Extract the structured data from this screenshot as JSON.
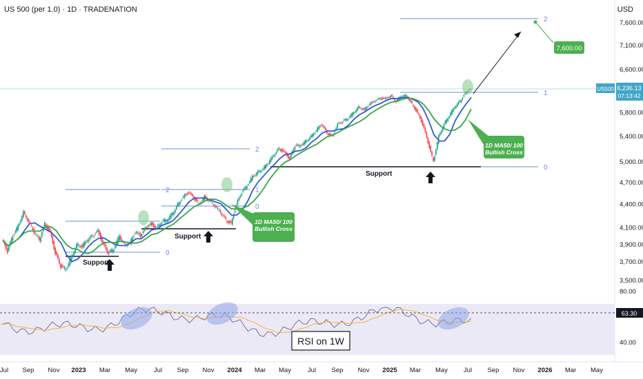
{
  "header": {
    "title": "US 500 (per 1.0) · 1D · TRADENATION",
    "currency": "USD"
  },
  "price_axis": [
    "7,600.00",
    "7,100.00",
    "6,600.00",
    "5,800.00",
    "5,400.00",
    "5,000.00",
    "4,700.00",
    "4,400.00",
    "4,100.00",
    "3,900.00",
    "3,700.00",
    "3,500.00"
  ],
  "rsi_axis": [
    "80.00",
    "40.00"
  ],
  "time_axis": [
    "Jul",
    "Sep",
    "Nov",
    "2023",
    "Mar",
    "May",
    "Jul",
    "Sep",
    "Nov",
    "2024",
    "Mar",
    "May",
    "Jul",
    "Sep",
    "Nov",
    "2025",
    "Mar",
    "May",
    "Jul",
    "Sep",
    "Nov",
    "2026",
    "Mar",
    "May"
  ],
  "badges": {
    "symbol": "US500",
    "price": "6,236.13",
    "countdown": "07:13:42",
    "rsi_value": "63.30",
    "target": "7,600.00"
  },
  "labels": {
    "support": "Support",
    "cross_line1": "1D MA50/ 100",
    "cross_line2": "Bullish Cross",
    "rsi_box": "RSI on 1W",
    "fib_0": "0",
    "fib_1": "1",
    "fib_2": "2"
  },
  "colors": {
    "price": "#131722",
    "candle_up": "#089981",
    "candle_down": "#f23645",
    "ma50": "#3358d4",
    "ma100": "#33a64a",
    "fib": "#6a8fd8",
    "rsi_line": "#7a6fa6",
    "rsi_ma": "#f5b630",
    "rsi_band": "#ece9f7",
    "callout": "#4caf50",
    "highlight_blue": "#8fa6e8",
    "highlight_green": "#7fc98a"
  },
  "chart_data": {
    "type": "line",
    "series": [
      {
        "values": [
          3950,
          3820,
          4000,
          4120,
          4300,
          4180,
          4050,
          3950,
          4150,
          4050,
          3800,
          3650,
          3620,
          3750,
          3900,
          3880,
          3950,
          4000,
          4060,
          3900,
          3800,
          3850,
          4000,
          3900,
          3920,
          4050,
          4000,
          4100,
          4150,
          4100,
          4180,
          4200,
          4280,
          4400,
          4500,
          4560,
          4480,
          4400,
          4500,
          4450,
          4380,
          4300,
          4200,
          4150,
          4400,
          4560,
          4650,
          4780,
          4850,
          4900,
          4990,
          5100,
          5200,
          5150,
          5050,
          5250,
          5250,
          5320,
          5400,
          5500,
          5600,
          5450,
          5400,
          5600,
          5650,
          5700,
          5800,
          5900,
          5850,
          5950,
          6000,
          6050,
          6050,
          6100,
          6000,
          6100,
          6100,
          5950,
          5800,
          5600,
          5300,
          5000,
          5400,
          5600,
          5750,
          5900,
          6000,
          6150,
          6236
        ]
      }
    ],
    "ylabel": "USD"
  }
}
